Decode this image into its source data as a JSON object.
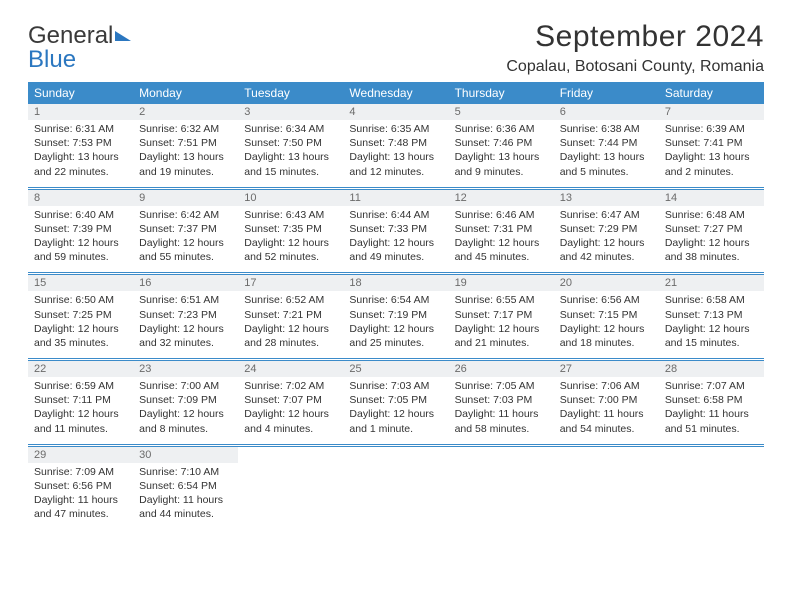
{
  "logo": {
    "part1": "General",
    "part2": "Blue"
  },
  "title": "September 2024",
  "location": "Copalau, Botosani County, Romania",
  "colors": {
    "header_bg": "#3b8bc9",
    "header_text": "#ffffff",
    "daynum_bg": "#eef0f2",
    "daynum_text": "#6b6b6b",
    "body_text": "#333333",
    "rule": "#3b8bc9"
  },
  "dayHeaders": [
    "Sunday",
    "Monday",
    "Tuesday",
    "Wednesday",
    "Thursday",
    "Friday",
    "Saturday"
  ],
  "weeks": [
    [
      {
        "n": "1",
        "sr": "Sunrise: 6:31 AM",
        "ss": "Sunset: 7:53 PM",
        "d1": "Daylight: 13 hours",
        "d2": "and 22 minutes."
      },
      {
        "n": "2",
        "sr": "Sunrise: 6:32 AM",
        "ss": "Sunset: 7:51 PM",
        "d1": "Daylight: 13 hours",
        "d2": "and 19 minutes."
      },
      {
        "n": "3",
        "sr": "Sunrise: 6:34 AM",
        "ss": "Sunset: 7:50 PM",
        "d1": "Daylight: 13 hours",
        "d2": "and 15 minutes."
      },
      {
        "n": "4",
        "sr": "Sunrise: 6:35 AM",
        "ss": "Sunset: 7:48 PM",
        "d1": "Daylight: 13 hours",
        "d2": "and 12 minutes."
      },
      {
        "n": "5",
        "sr": "Sunrise: 6:36 AM",
        "ss": "Sunset: 7:46 PM",
        "d1": "Daylight: 13 hours",
        "d2": "and 9 minutes."
      },
      {
        "n": "6",
        "sr": "Sunrise: 6:38 AM",
        "ss": "Sunset: 7:44 PM",
        "d1": "Daylight: 13 hours",
        "d2": "and 5 minutes."
      },
      {
        "n": "7",
        "sr": "Sunrise: 6:39 AM",
        "ss": "Sunset: 7:41 PM",
        "d1": "Daylight: 13 hours",
        "d2": "and 2 minutes."
      }
    ],
    [
      {
        "n": "8",
        "sr": "Sunrise: 6:40 AM",
        "ss": "Sunset: 7:39 PM",
        "d1": "Daylight: 12 hours",
        "d2": "and 59 minutes."
      },
      {
        "n": "9",
        "sr": "Sunrise: 6:42 AM",
        "ss": "Sunset: 7:37 PM",
        "d1": "Daylight: 12 hours",
        "d2": "and 55 minutes."
      },
      {
        "n": "10",
        "sr": "Sunrise: 6:43 AM",
        "ss": "Sunset: 7:35 PM",
        "d1": "Daylight: 12 hours",
        "d2": "and 52 minutes."
      },
      {
        "n": "11",
        "sr": "Sunrise: 6:44 AM",
        "ss": "Sunset: 7:33 PM",
        "d1": "Daylight: 12 hours",
        "d2": "and 49 minutes."
      },
      {
        "n": "12",
        "sr": "Sunrise: 6:46 AM",
        "ss": "Sunset: 7:31 PM",
        "d1": "Daylight: 12 hours",
        "d2": "and 45 minutes."
      },
      {
        "n": "13",
        "sr": "Sunrise: 6:47 AM",
        "ss": "Sunset: 7:29 PM",
        "d1": "Daylight: 12 hours",
        "d2": "and 42 minutes."
      },
      {
        "n": "14",
        "sr": "Sunrise: 6:48 AM",
        "ss": "Sunset: 7:27 PM",
        "d1": "Daylight: 12 hours",
        "d2": "and 38 minutes."
      }
    ],
    [
      {
        "n": "15",
        "sr": "Sunrise: 6:50 AM",
        "ss": "Sunset: 7:25 PM",
        "d1": "Daylight: 12 hours",
        "d2": "and 35 minutes."
      },
      {
        "n": "16",
        "sr": "Sunrise: 6:51 AM",
        "ss": "Sunset: 7:23 PM",
        "d1": "Daylight: 12 hours",
        "d2": "and 32 minutes."
      },
      {
        "n": "17",
        "sr": "Sunrise: 6:52 AM",
        "ss": "Sunset: 7:21 PM",
        "d1": "Daylight: 12 hours",
        "d2": "and 28 minutes."
      },
      {
        "n": "18",
        "sr": "Sunrise: 6:54 AM",
        "ss": "Sunset: 7:19 PM",
        "d1": "Daylight: 12 hours",
        "d2": "and 25 minutes."
      },
      {
        "n": "19",
        "sr": "Sunrise: 6:55 AM",
        "ss": "Sunset: 7:17 PM",
        "d1": "Daylight: 12 hours",
        "d2": "and 21 minutes."
      },
      {
        "n": "20",
        "sr": "Sunrise: 6:56 AM",
        "ss": "Sunset: 7:15 PM",
        "d1": "Daylight: 12 hours",
        "d2": "and 18 minutes."
      },
      {
        "n": "21",
        "sr": "Sunrise: 6:58 AM",
        "ss": "Sunset: 7:13 PM",
        "d1": "Daylight: 12 hours",
        "d2": "and 15 minutes."
      }
    ],
    [
      {
        "n": "22",
        "sr": "Sunrise: 6:59 AM",
        "ss": "Sunset: 7:11 PM",
        "d1": "Daylight: 12 hours",
        "d2": "and 11 minutes."
      },
      {
        "n": "23",
        "sr": "Sunrise: 7:00 AM",
        "ss": "Sunset: 7:09 PM",
        "d1": "Daylight: 12 hours",
        "d2": "and 8 minutes."
      },
      {
        "n": "24",
        "sr": "Sunrise: 7:02 AM",
        "ss": "Sunset: 7:07 PM",
        "d1": "Daylight: 12 hours",
        "d2": "and 4 minutes."
      },
      {
        "n": "25",
        "sr": "Sunrise: 7:03 AM",
        "ss": "Sunset: 7:05 PM",
        "d1": "Daylight: 12 hours",
        "d2": "and 1 minute."
      },
      {
        "n": "26",
        "sr": "Sunrise: 7:05 AM",
        "ss": "Sunset: 7:03 PM",
        "d1": "Daylight: 11 hours",
        "d2": "and 58 minutes."
      },
      {
        "n": "27",
        "sr": "Sunrise: 7:06 AM",
        "ss": "Sunset: 7:00 PM",
        "d1": "Daylight: 11 hours",
        "d2": "and 54 minutes."
      },
      {
        "n": "28",
        "sr": "Sunrise: 7:07 AM",
        "ss": "Sunset: 6:58 PM",
        "d1": "Daylight: 11 hours",
        "d2": "and 51 minutes."
      }
    ],
    [
      {
        "n": "29",
        "sr": "Sunrise: 7:09 AM",
        "ss": "Sunset: 6:56 PM",
        "d1": "Daylight: 11 hours",
        "d2": "and 47 minutes."
      },
      {
        "n": "30",
        "sr": "Sunrise: 7:10 AM",
        "ss": "Sunset: 6:54 PM",
        "d1": "Daylight: 11 hours",
        "d2": "and 44 minutes."
      },
      null,
      null,
      null,
      null,
      null
    ]
  ]
}
